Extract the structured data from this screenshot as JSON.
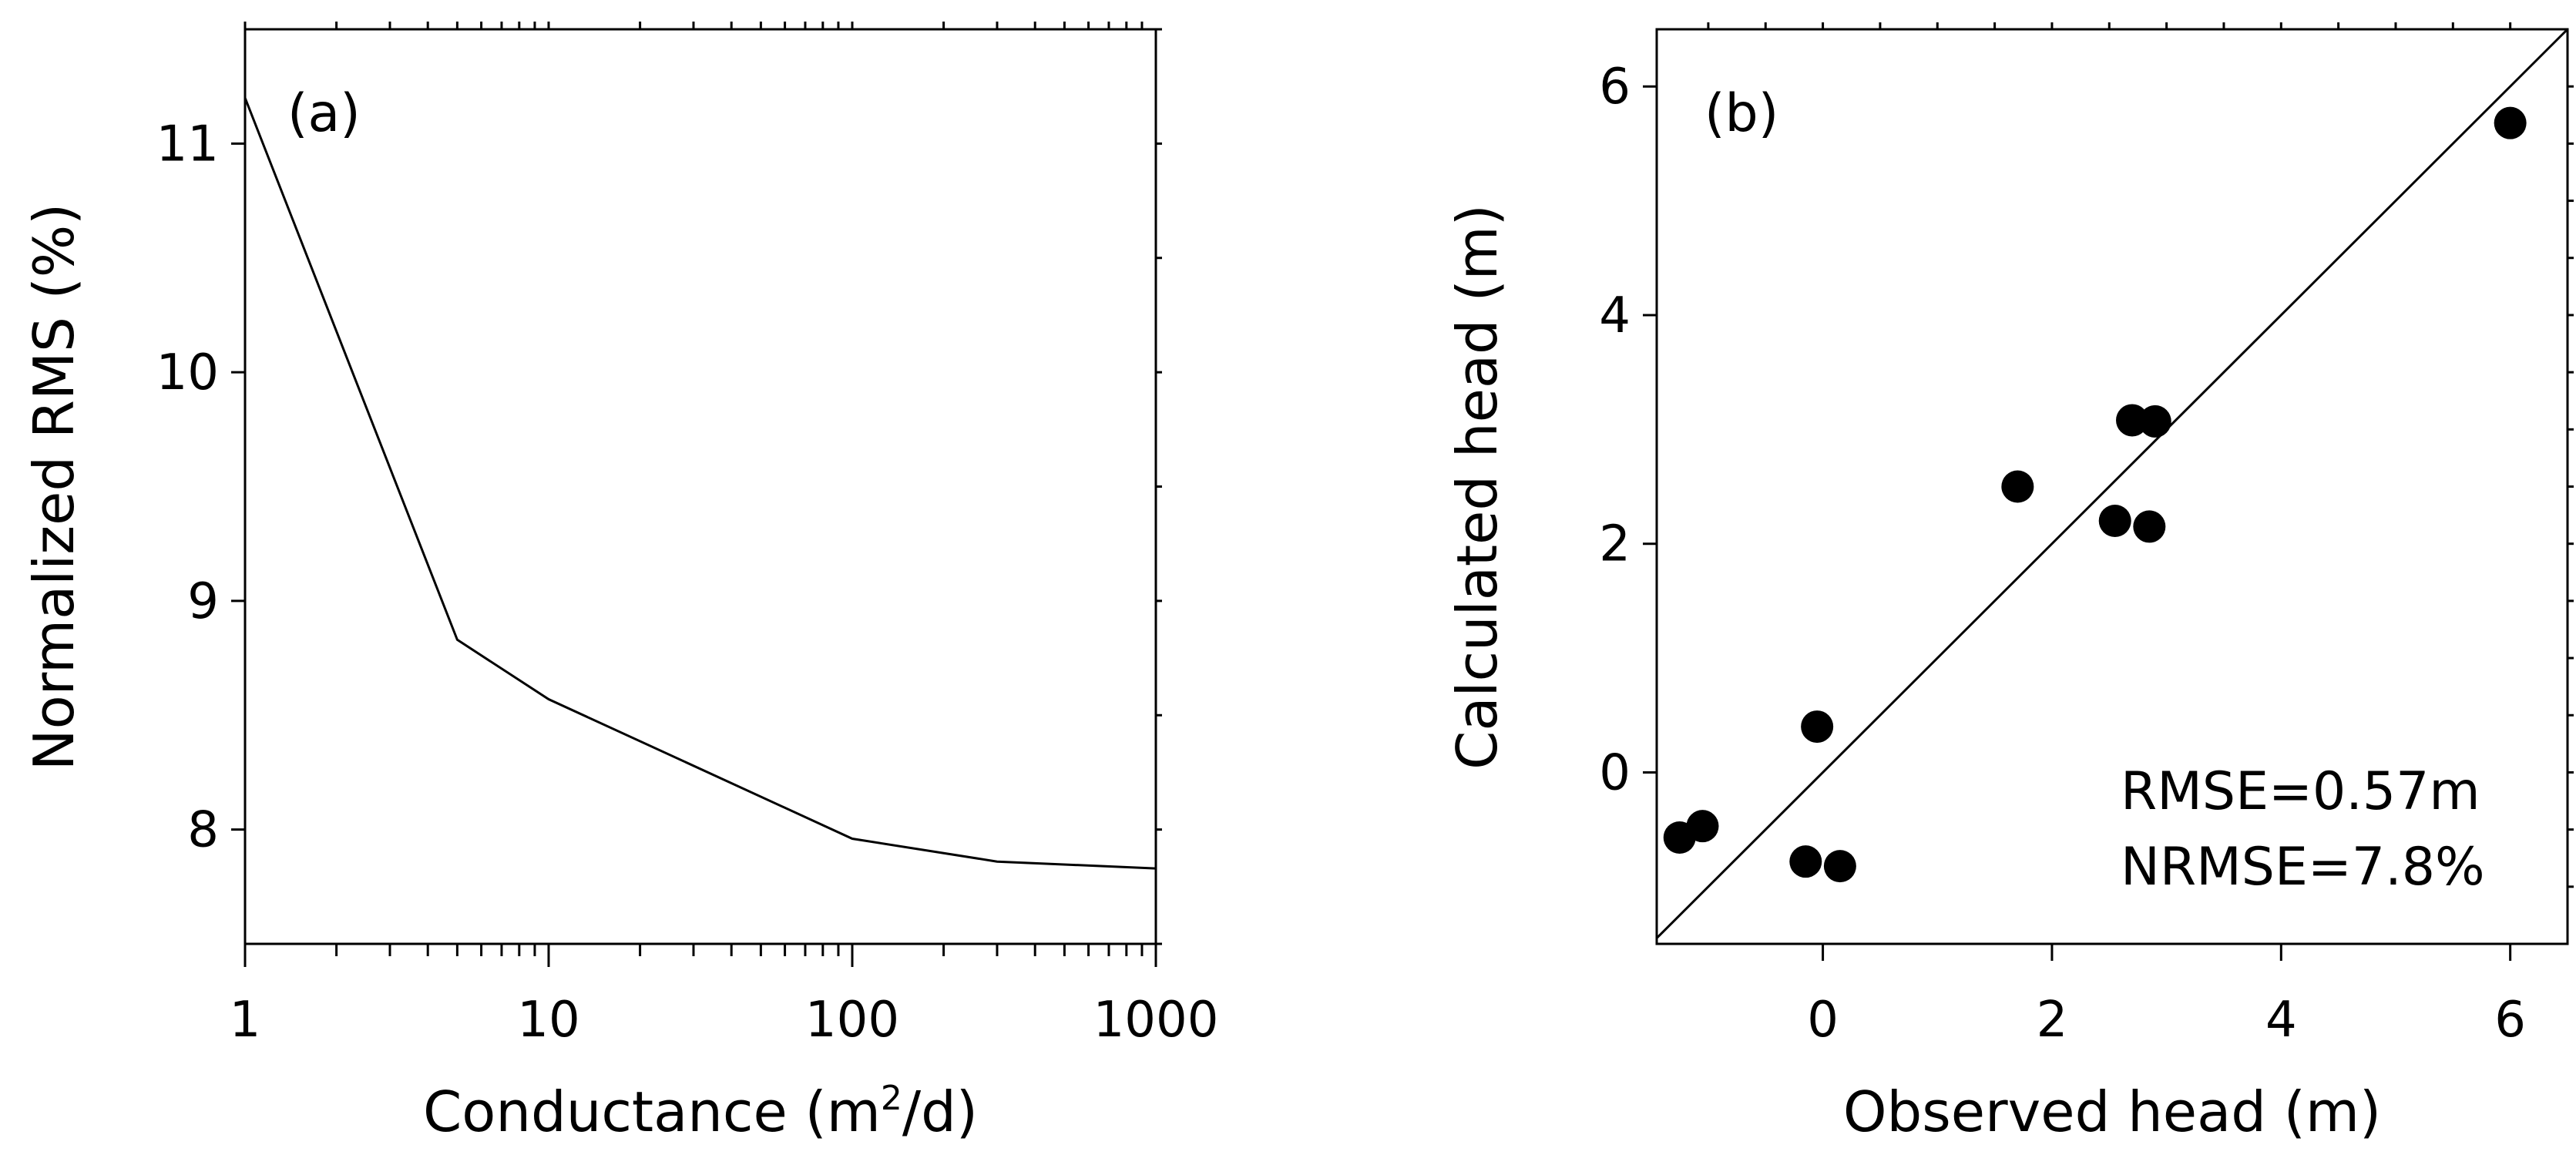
{
  "chart_data": [
    {
      "type": "line",
      "panel": "(a)",
      "xscale": "log",
      "x": [
        1,
        5,
        10,
        100,
        300,
        1000
      ],
      "y": [
        11.2,
        8.83,
        8.57,
        7.96,
        7.86,
        7.83
      ],
      "xlim": [
        1,
        1000
      ],
      "ylim": [
        7.5,
        11.5
      ],
      "xticks": [
        1,
        10,
        100,
        1000
      ],
      "xtick_labels": [
        "1",
        "10",
        "100",
        "1000"
      ],
      "yticks": [
        8,
        9,
        10,
        11
      ],
      "ytick_labels": [
        "8",
        "9",
        "10",
        "11"
      ],
      "xlabel": {
        "prefix": "Conductance (m",
        "sup": "2",
        "suffix": "/d)"
      },
      "ylabel": "Normalized RMS (%)"
    },
    {
      "type": "scatter",
      "panel": "(b)",
      "x": [
        -1.25,
        -1.05,
        -0.15,
        -0.05,
        0.15,
        1.7,
        2.55,
        2.7,
        2.85,
        2.9,
        6.0
      ],
      "y": [
        -0.57,
        -0.47,
        -0.78,
        0.4,
        -0.82,
        2.5,
        2.2,
        3.08,
        2.15,
        3.07,
        5.68
      ],
      "xlim": [
        -1.45,
        6.5
      ],
      "ylim": [
        -1.5,
        6.5
      ],
      "xticks": [
        0,
        2,
        4,
        6
      ],
      "xtick_labels": [
        "0",
        "2",
        "4",
        "6"
      ],
      "yticks": [
        0,
        2,
        4,
        6
      ],
      "ytick_labels": [
        "0",
        "2",
        "4",
        "6"
      ],
      "reference_line": "1:1",
      "xlabel": "Observed head (m)",
      "ylabel": "Calculated head (m)",
      "annotations": [
        "RMSE=0.57m",
        "NRMSE=7.8%"
      ]
    }
  ]
}
